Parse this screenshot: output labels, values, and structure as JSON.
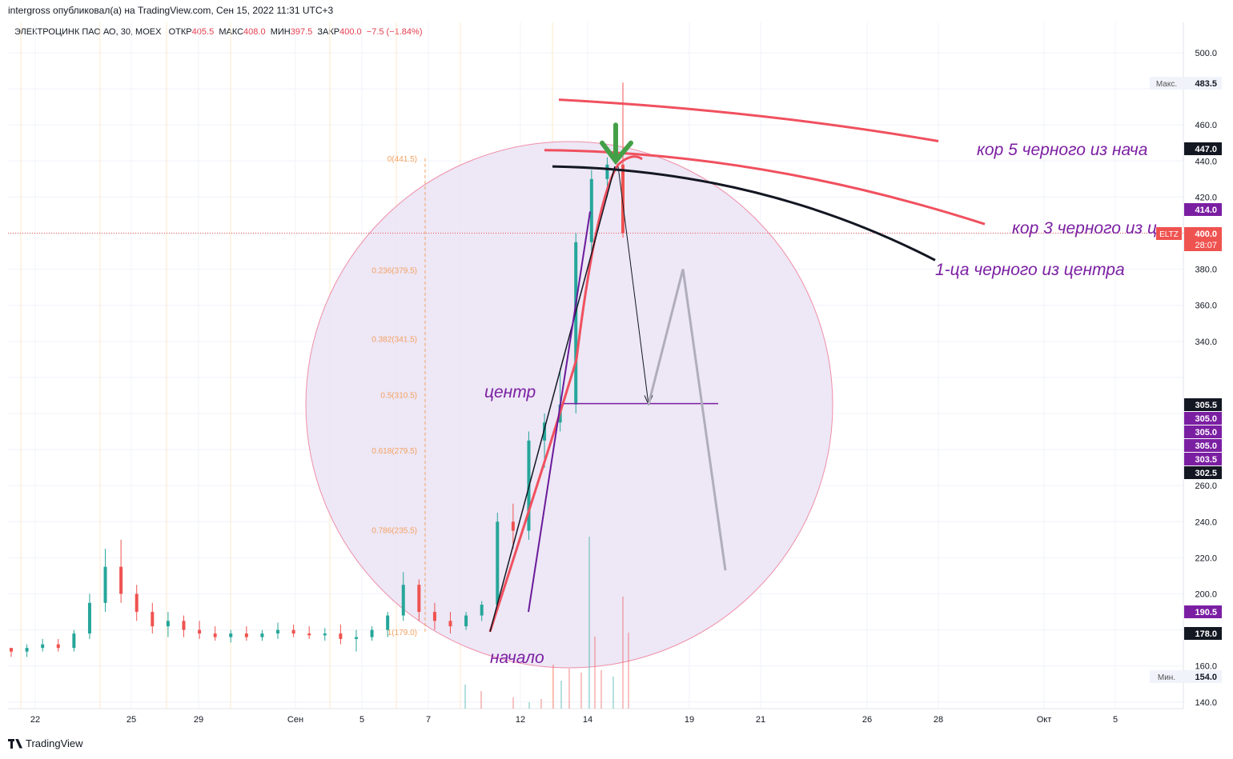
{
  "header": "intergross опубликовал(а) на TradingView.com, Сен 15, 2022 11:31 UTC+3",
  "legend": {
    "symbol": "ЭЛЕКТРОЦИНК ПАО АО, 30, MOEX",
    "open_label": "ОТКР",
    "open": "405.5",
    "high_label": "МАКС",
    "high": "408.0",
    "low_label": "МИН",
    "low": "397.5",
    "close_label": "ЗАКР",
    "close": "400.0",
    "change": "−7.5 (−1.84%)"
  },
  "footer": {
    "brand": "TradingView"
  },
  "colors": {
    "up": "#26a69a",
    "down": "#ef5350",
    "accent_red": "#f0505e",
    "purple": "#7b1fa2",
    "fib": "#f4a261",
    "circle_fill": "#ece6f6",
    "circle_stroke": "#f08fa8",
    "dark": "#131722"
  },
  "chart_data": {
    "type": "candlestick",
    "y_axis": {
      "min": 140,
      "max": 500,
      "ticks": [
        140,
        160,
        200,
        220,
        240,
        260,
        340,
        360,
        380,
        420,
        440,
        460,
        500
      ]
    },
    "x_axis": {
      "ticks": [
        "22",
        "25",
        "29",
        "Сен",
        "5",
        "7",
        "12",
        "14",
        "19",
        "21",
        "26",
        "28",
        "Окт",
        "5"
      ]
    },
    "candles_approx": [
      [
        170,
        170,
        165,
        168
      ],
      [
        168,
        172,
        165,
        170
      ],
      [
        170,
        175,
        168,
        172
      ],
      [
        172,
        175,
        168,
        170
      ],
      [
        170,
        180,
        168,
        178
      ],
      [
        178,
        200,
        175,
        195
      ],
      [
        195,
        225,
        190,
        215
      ],
      [
        215,
        230,
        195,
        200
      ],
      [
        200,
        205,
        185,
        190
      ],
      [
        190,
        195,
        178,
        182
      ],
      [
        182,
        190,
        176,
        185
      ],
      [
        185,
        188,
        176,
        180
      ],
      [
        180,
        185,
        175,
        178
      ],
      [
        178,
        182,
        174,
        176
      ],
      [
        176,
        180,
        173,
        178
      ],
      [
        178,
        182,
        174,
        176
      ],
      [
        176,
        180,
        174,
        178
      ],
      [
        178,
        184,
        175,
        180
      ],
      [
        180,
        183,
        176,
        178
      ],
      [
        178,
        182,
        175,
        177
      ],
      [
        177,
        181,
        174,
        178
      ],
      [
        178,
        183,
        172,
        175
      ],
      [
        175,
        180,
        168,
        176
      ],
      [
        176,
        182,
        174,
        180
      ],
      [
        180,
        190,
        176,
        188
      ],
      [
        188,
        212,
        185,
        205
      ],
      [
        205,
        208,
        185,
        190
      ],
      [
        190,
        195,
        180,
        185
      ],
      [
        185,
        190,
        178,
        182
      ],
      [
        182,
        190,
        180,
        188
      ],
      [
        188,
        196,
        185,
        194
      ],
      [
        194,
        245,
        192,
        240
      ],
      [
        240,
        250,
        225,
        235
      ],
      [
        235,
        290,
        230,
        285
      ],
      [
        285,
        300,
        270,
        295
      ],
      [
        295,
        325,
        290,
        305
      ],
      [
        305,
        400,
        300,
        395
      ],
      [
        395,
        435,
        390,
        430
      ],
      [
        430,
        442,
        420,
        438
      ],
      [
        438,
        483.5,
        397.5,
        400
      ]
    ],
    "price_labels": [
      {
        "label": "Макс.",
        "value": "483.5"
      },
      {
        "value": "447.0"
      },
      {
        "value": "414.0"
      },
      {
        "value": "400.0",
        "symbol": "ELTZ",
        "timer": "28:07"
      },
      {
        "value": "305.5"
      },
      {
        "value": "305.0"
      },
      {
        "value": "305.0"
      },
      {
        "value": "305.0"
      },
      {
        "value": "303.5"
      },
      {
        "value": "302.5"
      },
      {
        "value": "190.5"
      },
      {
        "value": "178.0"
      },
      {
        "label": "Мин.",
        "value": "154.0"
      }
    ],
    "fibonacci": [
      {
        "level": "0",
        "price": "441.5"
      },
      {
        "level": "0.236",
        "price": "379.5"
      },
      {
        "level": "0.382",
        "price": "341.5"
      },
      {
        "level": "0.5",
        "price": "310.5"
      },
      {
        "level": "0.618",
        "price": "279.5"
      },
      {
        "level": "0.786",
        "price": "235.5"
      },
      {
        "level": "1",
        "price": "179.0"
      }
    ],
    "annotations": [
      "кор 5 черного из нача",
      "кор 3 черного из ц",
      "1-ца черного из центра",
      "центр",
      "начало"
    ]
  }
}
